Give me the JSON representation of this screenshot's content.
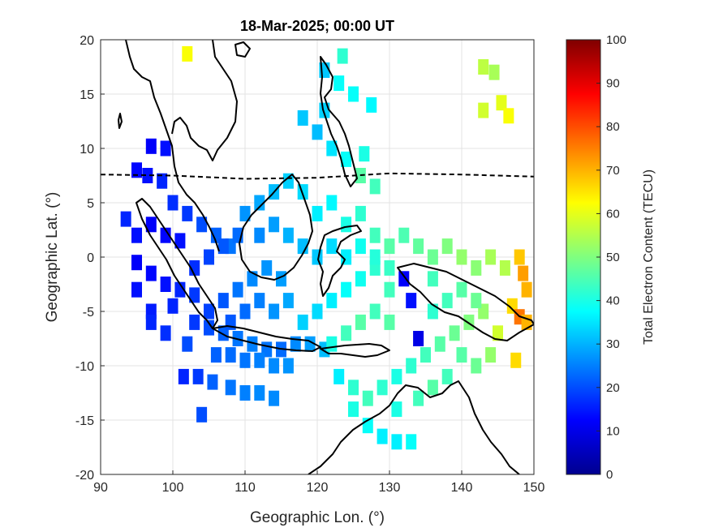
{
  "chart_data": {
    "type": "heatmap",
    "title": "18-Mar-2025; 00:00 UT",
    "xlabel": "Geographic Lon. (°)",
    "ylabel": "Geographic Lat. (°)",
    "xlim": [
      90,
      150
    ],
    "ylim": [
      -20,
      20
    ],
    "xticks": [
      90,
      100,
      110,
      120,
      130,
      140,
      150
    ],
    "yticks": [
      20,
      15,
      10,
      5,
      0,
      -5,
      -10,
      -15,
      -20
    ],
    "grid": true,
    "colorbar": {
      "label": "Total Electron Content (TECU)",
      "range": [
        0,
        100
      ],
      "ticks": [
        100,
        90,
        80,
        70,
        60,
        50,
        40,
        30,
        20,
        10,
        0
      ],
      "colormap": "jet"
    },
    "magnetic_equator_dashed": [
      [
        90,
        7.6
      ],
      [
        100,
        7.5
      ],
      [
        110,
        7.2
      ],
      [
        120,
        7.3
      ],
      [
        130,
        7.7
      ],
      [
        140,
        7.6
      ],
      [
        150,
        7.4
      ]
    ],
    "tec_cells": [
      [
        102,
        18.7,
        62
      ],
      [
        121,
        17.2,
        32
      ],
      [
        123.5,
        18.5,
        42
      ],
      [
        123,
        16,
        38
      ],
      [
        125,
        15,
        38
      ],
      [
        127.5,
        14,
        37
      ],
      [
        121,
        13.5,
        33
      ],
      [
        118,
        12.8,
        32
      ],
      [
        120,
        11.5,
        31
      ],
      [
        143,
        17.5,
        56
      ],
      [
        144.5,
        17,
        54
      ],
      [
        143,
        13.5,
        58
      ],
      [
        145.5,
        14.2,
        60
      ],
      [
        146.5,
        13,
        62
      ],
      [
        97,
        10.2,
        12
      ],
      [
        99,
        10,
        14
      ],
      [
        95,
        8,
        13
      ],
      [
        96.5,
        7.5,
        14
      ],
      [
        98.5,
        7,
        16
      ],
      [
        93.5,
        3.5,
        16
      ],
      [
        95,
        2,
        14
      ],
      [
        97,
        3,
        12
      ],
      [
        99,
        2,
        13
      ],
      [
        101,
        1.5,
        14
      ],
      [
        95,
        -0.5,
        12
      ],
      [
        97,
        -1.5,
        13
      ],
      [
        99,
        -2.5,
        14
      ],
      [
        101,
        -3,
        16
      ],
      [
        103,
        -3.5,
        18
      ],
      [
        100,
        5,
        17
      ],
      [
        102,
        4,
        18
      ],
      [
        104,
        3,
        20
      ],
      [
        106,
        2,
        22
      ],
      [
        108,
        1,
        24
      ],
      [
        103,
        -6,
        18
      ],
      [
        105,
        -6.5,
        20
      ],
      [
        107,
        -7,
        22
      ],
      [
        109,
        -7.5,
        24
      ],
      [
        111,
        -8,
        25
      ],
      [
        113,
        -8.5,
        24
      ],
      [
        115,
        -8.5,
        23
      ],
      [
        117,
        -8,
        26
      ],
      [
        119,
        -8,
        28
      ],
      [
        121,
        -8.5,
        31
      ],
      [
        110,
        4,
        27
      ],
      [
        112,
        5,
        29
      ],
      [
        114,
        6,
        31
      ],
      [
        116,
        7,
        33
      ],
      [
        118,
        6,
        34
      ],
      [
        120,
        4,
        36
      ],
      [
        122,
        5,
        37
      ],
      [
        124,
        3,
        40
      ],
      [
        126,
        4,
        42
      ],
      [
        128,
        2,
        44
      ],
      [
        130,
        1,
        46
      ],
      [
        132,
        2,
        45
      ],
      [
        134,
        1,
        47
      ],
      [
        136,
        0,
        48
      ],
      [
        138,
        1,
        50
      ],
      [
        140,
        0,
        52
      ],
      [
        142,
        -1,
        51
      ],
      [
        144,
        0,
        54
      ],
      [
        146,
        -1,
        55
      ],
      [
        148,
        0,
        68
      ],
      [
        148.5,
        -1.5,
        72
      ],
      [
        149,
        -3,
        70
      ],
      [
        147,
        -4.5,
        66
      ],
      [
        148,
        -5.5,
        76
      ],
      [
        149,
        -6,
        70
      ],
      [
        147.5,
        -9.5,
        66
      ],
      [
        145,
        -7,
        58
      ],
      [
        143,
        -5,
        52
      ],
      [
        141,
        -6,
        50
      ],
      [
        139,
        -7,
        48
      ],
      [
        137,
        -8,
        46
      ],
      [
        135,
        -9,
        44
      ],
      [
        133,
        -10,
        42
      ],
      [
        131,
        -11,
        40
      ],
      [
        129,
        -12,
        42
      ],
      [
        127,
        -13,
        44
      ],
      [
        125,
        -12,
        42
      ],
      [
        123,
        -11,
        36
      ],
      [
        125,
        -14,
        40
      ],
      [
        127,
        -15.5,
        38
      ],
      [
        129,
        -16.5,
        36
      ],
      [
        131,
        -17,
        36
      ],
      [
        133,
        -17,
        38
      ],
      [
        131,
        -14,
        40
      ],
      [
        134,
        -13,
        44
      ],
      [
        118,
        -6,
        33
      ],
      [
        120,
        -5,
        34
      ],
      [
        122,
        -4,
        36
      ],
      [
        124,
        -3,
        38
      ],
      [
        126,
        -2,
        39
      ],
      [
        128,
        -1,
        42
      ],
      [
        130,
        -3,
        44
      ],
      [
        132,
        -2,
        12
      ],
      [
        133,
        -4,
        14
      ],
      [
        134,
        -7.5,
        10
      ],
      [
        128,
        -5,
        44
      ],
      [
        126,
        -6,
        46
      ],
      [
        124,
        -7,
        44
      ],
      [
        122,
        -8,
        40
      ],
      [
        130,
        -6,
        46
      ],
      [
        115,
        -2,
        28
      ],
      [
        113,
        -1,
        27
      ],
      [
        111,
        -2,
        26
      ],
      [
        109,
        -3,
        24
      ],
      [
        107,
        -4,
        21
      ],
      [
        105,
        -5,
        19
      ],
      [
        103,
        -1,
        17
      ],
      [
        105,
        0,
        19
      ],
      [
        107,
        1,
        21
      ],
      [
        109,
        2,
        23
      ],
      [
        112,
        2,
        26
      ],
      [
        114,
        3,
        28
      ],
      [
        116,
        2,
        30
      ],
      [
        118,
        1,
        31
      ],
      [
        120,
        0,
        32
      ],
      [
        122,
        1,
        34
      ],
      [
        124,
        0,
        36
      ],
      [
        126,
        1,
        39
      ],
      [
        128,
        0,
        41
      ],
      [
        130,
        -1,
        43
      ],
      [
        116,
        -4,
        29
      ],
      [
        114,
        -5,
        27
      ],
      [
        112,
        -4,
        25
      ],
      [
        110,
        -5,
        23
      ],
      [
        108,
        -6,
        21
      ],
      [
        103.5,
        -11,
        18
      ],
      [
        105.5,
        -11.5,
        22
      ],
      [
        108,
        -12,
        24
      ],
      [
        110,
        -12.5,
        25
      ],
      [
        112,
        -12.5,
        26
      ],
      [
        114,
        -13,
        26
      ],
      [
        104,
        -14.5,
        20
      ],
      [
        101.5,
        -11,
        16
      ],
      [
        102,
        -8,
        20
      ],
      [
        99,
        -7,
        17
      ],
      [
        97,
        -5,
        15
      ],
      [
        95,
        -3,
        14
      ],
      [
        97,
        -6,
        16
      ],
      [
        100,
        -4.5,
        16
      ],
      [
        106,
        -9,
        22
      ],
      [
        108,
        -9,
        23
      ],
      [
        110,
        -9.5,
        24
      ],
      [
        112,
        -9.5,
        25
      ],
      [
        114,
        -10,
        26
      ],
      [
        116,
        -10,
        27
      ],
      [
        126,
        7.5,
        46
      ],
      [
        128,
        6.5,
        44
      ],
      [
        126.5,
        9.5,
        40
      ],
      [
        124,
        9,
        38
      ],
      [
        122,
        10,
        35
      ],
      [
        140,
        -3,
        46
      ],
      [
        142,
        -4,
        48
      ],
      [
        138,
        -4,
        44
      ],
      [
        136,
        -5,
        42
      ],
      [
        136,
        -2,
        44
      ],
      [
        140,
        -9,
        46
      ],
      [
        142,
        -10,
        48
      ],
      [
        138,
        -11,
        44
      ],
      [
        136,
        -12,
        46
      ],
      [
        144,
        -9,
        52
      ]
    ]
  }
}
